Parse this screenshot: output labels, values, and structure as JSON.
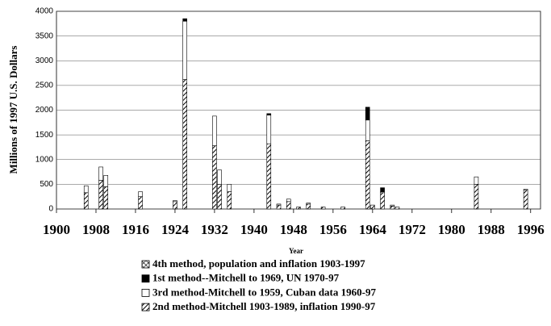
{
  "chart_data": {
    "type": "stacked_bar",
    "x_label": "Year",
    "y_label": "Millions of 1997 U.S. Dollars",
    "x": [
      1906,
      1909,
      1910,
      1917,
      1924,
      1926,
      1932,
      1933,
      1935,
      1943,
      1945,
      1947,
      1949,
      1951,
      1954,
      1958,
      1963,
      1964,
      1966,
      1968,
      1969,
      1985,
      1995
    ],
    "series": [
      {
        "name": "4th method, population and inflation 1903-1997",
        "color": "#000000",
        "pattern": "crosshatch",
        "values": [
          0,
          0,
          0,
          0,
          0,
          0,
          0,
          0,
          0,
          0,
          0,
          0,
          0,
          0,
          0,
          0,
          0,
          0,
          0,
          0,
          0,
          0,
          0
        ]
      },
      {
        "name": "1st method--Mitchell to 1969, UN 1970-97",
        "color": "#000000",
        "pattern": "solid",
        "values": [
          0,
          0,
          0,
          0,
          0,
          50,
          0,
          0,
          0,
          30,
          0,
          0,
          0,
          0,
          0,
          0,
          260,
          0,
          80,
          0,
          0,
          0,
          0
        ]
      },
      {
        "name": "3rd method-Mitchell to 1959, Cuban data 1960-97",
        "color": "#ffffff",
        "pattern": "solid",
        "values": [
          140,
          270,
          230,
          100,
          20,
          1180,
          600,
          290,
          150,
          580,
          20,
          50,
          0,
          20,
          0,
          0,
          420,
          0,
          20,
          20,
          0,
          150,
          20
        ]
      },
      {
        "name": "2nd method-Mitchell 1903-1989, inflation 1990-97",
        "color": "#000000",
        "pattern": "diagonal",
        "values": [
          330,
          580,
          450,
          250,
          150,
          2620,
          1280,
          500,
          350,
          1320,
          80,
          150,
          40,
          100,
          40,
          40,
          1380,
          80,
          330,
          60,
          40,
          500,
          380
        ]
      }
    ],
    "xlim": [
      1900,
      1998
    ],
    "xticks": [
      1900,
      1908,
      1916,
      1924,
      1932,
      1940,
      1948,
      1956,
      1964,
      1972,
      1980,
      1988,
      1996
    ],
    "ylim": [
      0,
      4000
    ],
    "yticks": [
      0,
      500,
      1000,
      1500,
      2000,
      2500,
      3000,
      3500,
      4000
    ],
    "grid": true
  }
}
